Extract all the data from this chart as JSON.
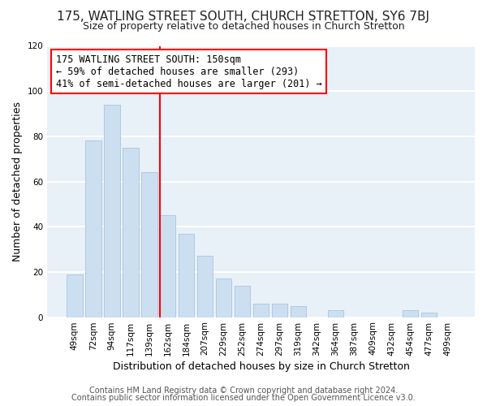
{
  "title": "175, WATLING STREET SOUTH, CHURCH STRETTON, SY6 7BJ",
  "subtitle": "Size of property relative to detached houses in Church Stretton",
  "xlabel": "Distribution of detached houses by size in Church Stretton",
  "ylabel": "Number of detached properties",
  "bar_labels": [
    "49sqm",
    "72sqm",
    "94sqm",
    "117sqm",
    "139sqm",
    "162sqm",
    "184sqm",
    "207sqm",
    "229sqm",
    "252sqm",
    "274sqm",
    "297sqm",
    "319sqm",
    "342sqm",
    "364sqm",
    "387sqm",
    "409sqm",
    "432sqm",
    "454sqm",
    "477sqm",
    "499sqm"
  ],
  "bar_values": [
    19,
    78,
    94,
    75,
    64,
    45,
    37,
    27,
    17,
    14,
    6,
    6,
    5,
    0,
    3,
    0,
    0,
    0,
    3,
    2,
    0
  ],
  "bar_color": "#ccdff0",
  "bar_edge_color": "#aac4de",
  "vline_x": 4.57,
  "vline_color": "red",
  "annotation_text": "175 WATLING STREET SOUTH: 150sqm\n← 59% of detached houses are smaller (293)\n41% of semi-detached houses are larger (201) →",
  "annotation_box_color": "white",
  "annotation_box_edge": "red",
  "ylim": [
    0,
    120
  ],
  "yticks": [
    0,
    20,
    40,
    60,
    80,
    100,
    120
  ],
  "footer_line1": "Contains HM Land Registry data © Crown copyright and database right 2024.",
  "footer_line2": "Contains public sector information licensed under the Open Government Licence v3.0.",
  "bg_color": "#ffffff",
  "plot_bg_color": "#e8f0f8",
  "grid_color": "white",
  "title_fontsize": 11,
  "subtitle_fontsize": 9,
  "axis_label_fontsize": 9,
  "tick_fontsize": 7.5,
  "footer_fontsize": 7,
  "annotation_fontsize": 8.5
}
